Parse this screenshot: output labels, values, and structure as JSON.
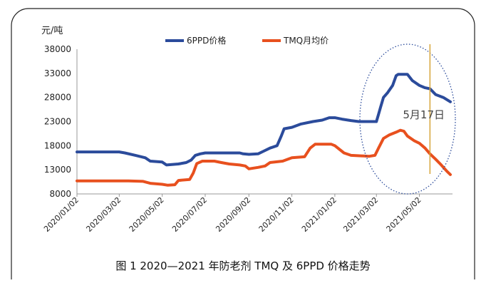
{
  "caption": "图 1  2020—2021 年防老剂 TMQ 及 6PPD 价格走势",
  "chart_data": {
    "type": "line",
    "unit_label": "元/吨",
    "ylim": [
      8000,
      38000
    ],
    "yticks": [
      "38000",
      "33000",
      "28000",
      "23000",
      "18000",
      "13000",
      "8000"
    ],
    "ytick_values": [
      38000,
      33000,
      28000,
      23000,
      18000,
      13000,
      8000
    ],
    "xticks": [
      "2020/01/02",
      "2020/03/02",
      "2020/05/02",
      "2020/07/02",
      "2020/09/02",
      "2020/11/02",
      "2021/01/02",
      "2021/03/02",
      "2021/05/02"
    ],
    "grid": false,
    "legend_position": "top",
    "annotation": {
      "text": "5月17日",
      "x": "2021/05/17"
    },
    "series": [
      {
        "name": "6PPD价格",
        "color": "#2b4b9b",
        "points": [
          [
            "2020/01/02",
            16700
          ],
          [
            "2020/03/02",
            16700
          ],
          [
            "2020/03/10",
            16500
          ],
          [
            "2020/03/25",
            16000
          ],
          [
            "2020/04/08",
            15500
          ],
          [
            "2020/04/15",
            14800
          ],
          [
            "2020/05/02",
            14600
          ],
          [
            "2020/05/08",
            14000
          ],
          [
            "2020/05/25",
            14200
          ],
          [
            "2020/06/05",
            14500
          ],
          [
            "2020/06/12",
            15000
          ],
          [
            "2020/06/18",
            16000
          ],
          [
            "2020/06/25",
            16300
          ],
          [
            "2020/07/02",
            16500
          ],
          [
            "2020/08/20",
            16500
          ],
          [
            "2020/08/25",
            16300
          ],
          [
            "2020/09/02",
            16200
          ],
          [
            "2020/09/15",
            16300
          ],
          [
            "2020/09/22",
            16800
          ],
          [
            "2020/10/02",
            17500
          ],
          [
            "2020/10/12",
            18000
          ],
          [
            "2020/10/18",
            20000
          ],
          [
            "2020/10/22",
            21500
          ],
          [
            "2020/11/02",
            21800
          ],
          [
            "2020/11/15",
            22500
          ],
          [
            "2020/12/02",
            23000
          ],
          [
            "2020/12/15",
            23300
          ],
          [
            "2020/12/25",
            23800
          ],
          [
            "2021/01/02",
            23800
          ],
          [
            "2021/01/12",
            23500
          ],
          [
            "2021/01/25",
            23200
          ],
          [
            "2021/02/05",
            23000
          ],
          [
            "2021/03/02",
            23000
          ],
          [
            "2021/03/05",
            24500
          ],
          [
            "2021/03/08",
            26000
          ],
          [
            "2021/03/12",
            28000
          ],
          [
            "2021/03/18",
            29000
          ],
          [
            "2021/03/25",
            30500
          ],
          [
            "2021/03/30",
            32500
          ],
          [
            "2021/04/02",
            32800
          ],
          [
            "2021/04/15",
            32800
          ],
          [
            "2021/04/22",
            31500
          ],
          [
            "2021/05/02",
            30500
          ],
          [
            "2021/05/10",
            30000
          ],
          [
            "2021/05/17",
            29800
          ],
          [
            "2021/05/25",
            28600
          ],
          [
            "2021/06/05",
            28000
          ],
          [
            "2021/06/15",
            27100
          ]
        ]
      },
      {
        "name": "TMQ月均价",
        "color": "#e8501e",
        "points": [
          [
            "2020/01/02",
            10700
          ],
          [
            "2020/03/15",
            10700
          ],
          [
            "2020/04/05",
            10600
          ],
          [
            "2020/04/15",
            10200
          ],
          [
            "2020/05/02",
            10000
          ],
          [
            "2020/05/10",
            9800
          ],
          [
            "2020/05/20",
            9900
          ],
          [
            "2020/05/25",
            10800
          ],
          [
            "2020/06/10",
            11000
          ],
          [
            "2020/06/15",
            12300
          ],
          [
            "2020/06/20",
            14300
          ],
          [
            "2020/06/28",
            14800
          ],
          [
            "2020/07/15",
            14800
          ],
          [
            "2020/07/25",
            14500
          ],
          [
            "2020/08/05",
            14200
          ],
          [
            "2020/08/20",
            14000
          ],
          [
            "2020/08/28",
            13800
          ],
          [
            "2020/09/02",
            13200
          ],
          [
            "2020/09/15",
            13500
          ],
          [
            "2020/09/25",
            13800
          ],
          [
            "2020/10/02",
            14500
          ],
          [
            "2020/10/20",
            14800
          ],
          [
            "2020/11/02",
            15500
          ],
          [
            "2020/11/20",
            15700
          ],
          [
            "2020/11/28",
            17500
          ],
          [
            "2020/12/05",
            18300
          ],
          [
            "2020/12/28",
            18300
          ],
          [
            "2021/01/02",
            18000
          ],
          [
            "2021/01/15",
            16500
          ],
          [
            "2021/01/25",
            16000
          ],
          [
            "2021/02/20",
            15800
          ],
          [
            "2021/02/28",
            16000
          ],
          [
            "2021/03/05",
            17500
          ],
          [
            "2021/03/12",
            19500
          ],
          [
            "2021/03/20",
            20200
          ],
          [
            "2021/03/30",
            20800
          ],
          [
            "2021/04/05",
            21200
          ],
          [
            "2021/04/10",
            21000
          ],
          [
            "2021/04/15",
            20000
          ],
          [
            "2021/04/25",
            19000
          ],
          [
            "2021/05/02",
            18500
          ],
          [
            "2021/05/10",
            17500
          ],
          [
            "2021/05/17",
            16300
          ],
          [
            "2021/05/25",
            15200
          ],
          [
            "2021/06/02",
            14000
          ],
          [
            "2021/06/10",
            12700
          ],
          [
            "2021/06/15",
            12000
          ]
        ]
      }
    ]
  }
}
